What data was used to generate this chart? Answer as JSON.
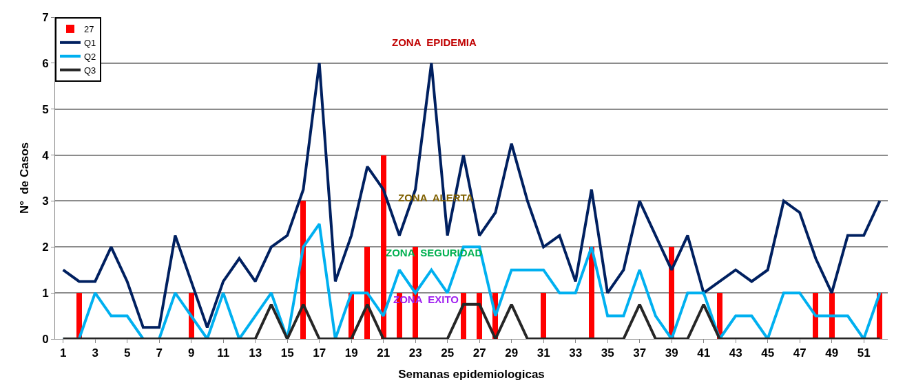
{
  "chart_data": {
    "type": "line",
    "xlabel": "Semanas epidemiologicas",
    "ylabel": "N°  de Casos",
    "x": [
      1,
      2,
      3,
      4,
      5,
      6,
      7,
      8,
      9,
      10,
      11,
      12,
      13,
      14,
      15,
      16,
      17,
      18,
      19,
      20,
      21,
      22,
      23,
      24,
      25,
      26,
      27,
      28,
      29,
      30,
      31,
      32,
      33,
      34,
      35,
      36,
      37,
      38,
      39,
      40,
      41,
      42,
      43,
      44,
      45,
      46,
      47,
      48,
      49,
      50,
      51,
      52
    ],
    "series": [
      {
        "name": "27",
        "type": "bar",
        "color": "#ff0000",
        "values": [
          0,
          1,
          0,
          0,
          0,
          0,
          0,
          0,
          1,
          0,
          0,
          0,
          0,
          0,
          0,
          3,
          0,
          0,
          1,
          2,
          4,
          1,
          2,
          0,
          0,
          1,
          1,
          1,
          0,
          0,
          1,
          0,
          0,
          2,
          0,
          0,
          0,
          0,
          2,
          0,
          0,
          1,
          0,
          0,
          0,
          0,
          0,
          1,
          1,
          0,
          0,
          1
        ]
      },
      {
        "name": "Q1",
        "color": "#002060",
        "values": [
          1.5,
          1.25,
          1.25,
          2,
          1.25,
          0.25,
          0.25,
          2.25,
          1.25,
          0.25,
          1.25,
          1.75,
          1.25,
          2,
          2.25,
          3.25,
          6,
          1.25,
          2.25,
          3.75,
          3.25,
          2.25,
          3.25,
          6,
          2.25,
          4,
          2.25,
          2.75,
          4.25,
          3,
          2,
          2.25,
          1.25,
          3.25,
          1,
          1.5,
          3,
          2.25,
          1.5,
          2.25,
          1,
          1.25,
          1.5,
          1.25,
          1.5,
          3,
          2.75,
          1.75,
          1,
          2.25,
          2.25,
          3
        ]
      },
      {
        "name": "Q2",
        "color": "#00b0f0",
        "values": [
          0,
          0,
          1,
          0.5,
          0.5,
          0,
          0,
          1,
          0.5,
          0,
          1,
          0,
          0.5,
          1,
          0,
          2,
          2.5,
          0,
          1,
          1,
          0.5,
          1.5,
          1,
          1.5,
          1,
          2,
          2,
          0.5,
          1.5,
          1.5,
          1.5,
          1,
          1,
          2,
          0.5,
          0.5,
          1.5,
          0.5,
          0,
          1,
          1,
          0,
          0.5,
          0.5,
          0,
          1,
          1,
          0.5,
          0.5,
          0.5,
          0,
          1
        ]
      },
      {
        "name": "Q3",
        "color": "#262626",
        "values": [
          0,
          0,
          0,
          0,
          0,
          0,
          0,
          0,
          0,
          0,
          0,
          0,
          0,
          0.75,
          0,
          0.75,
          0,
          0,
          0,
          0.75,
          0,
          0,
          0,
          0,
          0,
          0.75,
          0.75,
          0,
          0.75,
          0,
          0,
          0,
          0,
          0,
          0,
          0,
          0.75,
          0,
          0,
          0,
          0.75,
          0,
          0,
          0,
          0,
          0,
          0,
          0,
          0,
          0,
          0,
          0
        ]
      }
    ],
    "xlim": [
      0.5,
      52.5
    ],
    "xticks": [
      1,
      3,
      5,
      7,
      9,
      11,
      13,
      15,
      17,
      19,
      21,
      23,
      25,
      27,
      29,
      31,
      33,
      35,
      37,
      39,
      41,
      43,
      45,
      47,
      49,
      51
    ],
    "ylim": [
      0,
      7
    ],
    "yticks": [
      0,
      1,
      2,
      3,
      4,
      5,
      6,
      7
    ],
    "grid": "y",
    "legend": "top left",
    "annotations": [
      "ZONA  EPIDEMIA",
      "ZONA  ALERTA",
      "ZONA  SEGURIDAD",
      "ZONA  EXITO"
    ]
  }
}
